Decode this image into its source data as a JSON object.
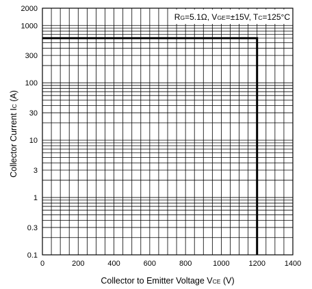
{
  "chart_data": {
    "type": "line",
    "title": "",
    "annotation": {
      "rg_sym": "R",
      "rg_sub": "G",
      "rg_val": "=5.1Ω, ",
      "vge_sym": "V",
      "vge_sub": "GE",
      "vge_val": "=±15V, ",
      "tc_sym": "T",
      "tc_sub": "C",
      "tc_val": "=125°C"
    },
    "xlabel": {
      "main": "Collector to Emitter Voltage  V",
      "sub": "CE",
      "unit": "  (V)"
    },
    "ylabel": {
      "main": "Collector Current  I",
      "sub": "C",
      "unit": "  (A)"
    },
    "x_scale": "linear",
    "y_scale": "log",
    "xlim": [
      0,
      1400
    ],
    "ylim": [
      0.1,
      2000
    ],
    "x_ticks": [
      0,
      200,
      400,
      600,
      800,
      1000,
      1200,
      1400
    ],
    "x_tick_labels": [
      "0",
      "200",
      "400",
      "600",
      "800",
      "1000",
      "1200",
      "1400"
    ],
    "y_ticks": [
      0.1,
      0.3,
      1,
      3,
      10,
      30,
      100,
      300,
      1000,
      2000
    ],
    "y_tick_labels": [
      "0.1",
      "0.3",
      "1",
      "3",
      "10",
      "30",
      "100",
      "300",
      "1000",
      "2000"
    ],
    "grid": true,
    "series": [
      {
        "x": [
          0,
          1200,
          1200
        ],
        "y": [
          600,
          600,
          0.1
        ],
        "color": "#000000"
      }
    ]
  }
}
